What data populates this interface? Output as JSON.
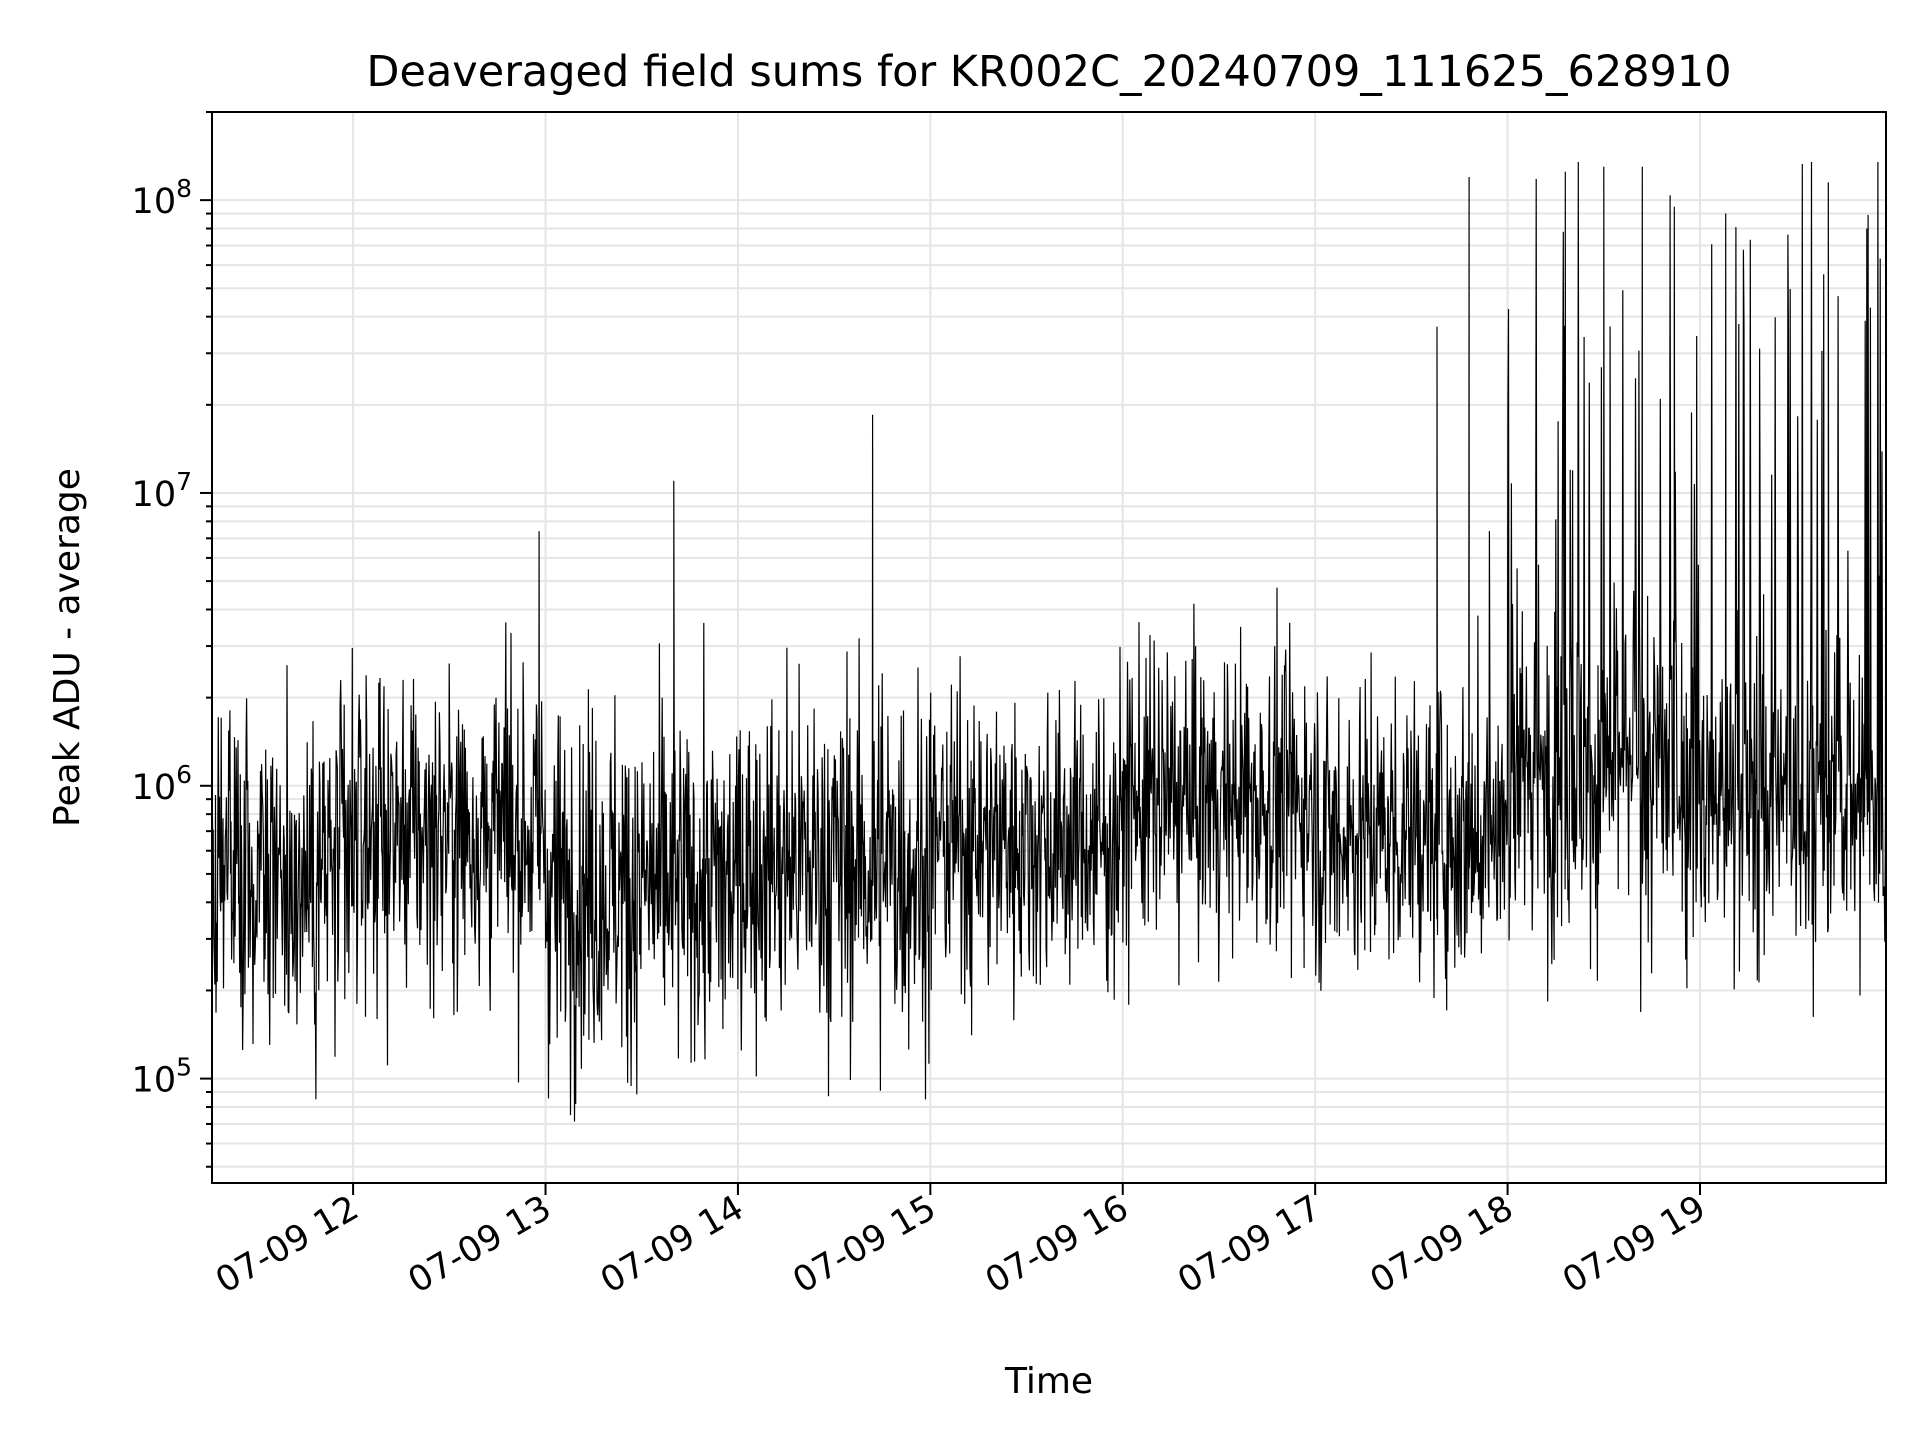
{
  "chart_data": {
    "type": "line",
    "title": "Deaveraged field sums for KR002C_20240709_111625_628910",
    "xlabel": "Time",
    "ylabel": "Peak ADU - average",
    "xscale": "time",
    "yscale": "log",
    "xlim": [
      "07-09 11:16",
      "07-09 19:58"
    ],
    "ylim": [
      44000,
      200000000
    ],
    "x_ticks": [
      {
        "label": "07-09 12",
        "time": "07-09 12:00"
      },
      {
        "label": "07-09 13",
        "time": "07-09 13:00"
      },
      {
        "label": "07-09 14",
        "time": "07-09 14:00"
      },
      {
        "label": "07-09 15",
        "time": "07-09 15:00"
      },
      {
        "label": "07-09 16",
        "time": "07-09 16:00"
      },
      {
        "label": "07-09 17",
        "time": "07-09 17:00"
      },
      {
        "label": "07-09 18",
        "time": "07-09 18:00"
      },
      {
        "label": "07-09 19",
        "time": "07-09 19:00"
      }
    ],
    "y_ticks": [
      {
        "base": "10",
        "exp": "5",
        "value": 100000
      },
      {
        "base": "10",
        "exp": "6",
        "value": 1000000
      },
      {
        "base": "10",
        "exp": "7",
        "value": 10000000
      },
      {
        "base": "10",
        "exp": "8",
        "value": 100000000
      }
    ],
    "grid": true,
    "grid_minor_y": true,
    "line_color": "#000000",
    "grid_color": "#e5e5e5",
    "series": [
      {
        "segments": [
          {
            "x_start": "07-09 11:16",
            "x_end": "07-09 12:00",
            "typical": 500000,
            "spread": 0.6
          },
          {
            "x_start": "07-09 12:00",
            "x_end": "07-09 13:00",
            "typical": 700000,
            "spread": 0.55
          },
          {
            "x_start": "07-09 13:00",
            "x_end": "07-09 14:00",
            "typical": 450000,
            "spread": 0.6
          },
          {
            "x_start": "07-09 14:00",
            "x_end": "07-09 15:00",
            "typical": 550000,
            "spread": 0.6
          },
          {
            "x_start": "07-09 15:00",
            "x_end": "07-09 16:00",
            "typical": 650000,
            "spread": 0.5
          },
          {
            "x_start": "07-09 16:00",
            "x_end": "07-09 17:00",
            "typical": 900000,
            "spread": 0.5
          },
          {
            "x_start": "07-09 17:00",
            "x_end": "07-09 18:00",
            "typical": 700000,
            "spread": 0.5
          },
          {
            "x_start": "07-09 18:00",
            "x_end": "07-09 19:00",
            "typical": 1100000,
            "spread": 0.6
          },
          {
            "x_start": "07-09 19:00",
            "x_end": "07-09 19:58",
            "typical": 900000,
            "spread": 0.55
          }
        ],
        "spikes": [
          {
            "time": "07-09 12:58",
            "value": 7400000
          },
          {
            "time": "07-09 13:40",
            "value": 11000000
          },
          {
            "time": "07-09 14:42",
            "value": 18500000
          },
          {
            "time": "07-09 17:38",
            "value": 37000000
          },
          {
            "time": "07-09 17:48",
            "value": 120000000
          },
          {
            "time": "07-09 18:18",
            "value": 125000000
          },
          {
            "time": "07-09 18:30",
            "value": 130000000
          },
          {
            "time": "07-09 18:42",
            "value": 130000000
          },
          {
            "time": "07-09 18:52",
            "value": 95000000
          },
          {
            "time": "07-09 19:08",
            "value": 90000000
          },
          {
            "time": "07-09 19:40",
            "value": 115000000
          },
          {
            "time": "07-09 19:52",
            "value": 80000000
          }
        ]
      }
    ]
  }
}
